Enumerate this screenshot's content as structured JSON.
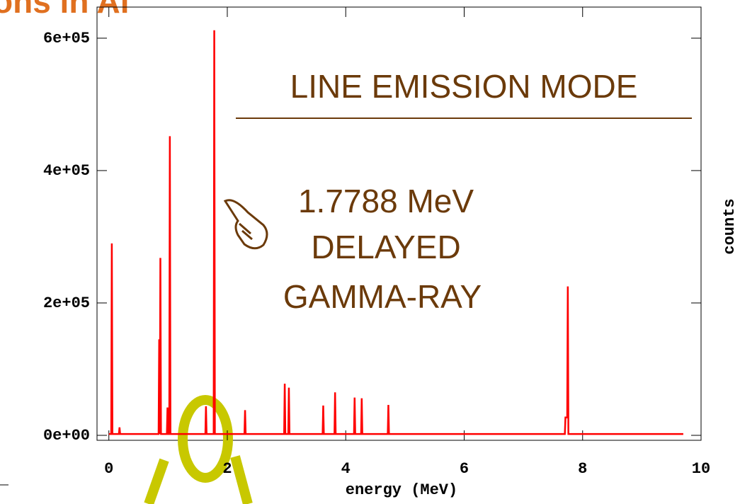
{
  "chart_data": {
    "type": "line",
    "title": "ons in Al",
    "xlabel": "energy (MeV)",
    "ylabel": "counts",
    "annotations": [
      "LINE EMISSION MODE",
      "1.7788 MeV",
      "DELAYED",
      "GAMMA-RAY"
    ],
    "color": "#ff0000",
    "xlim": [
      -0.2,
      10
    ],
    "ylim": [
      -7500,
      647000
    ],
    "xticks": [
      0,
      2,
      4,
      6,
      8,
      10
    ],
    "yticks": [
      {
        "value": 0,
        "label": "0e+00"
      },
      {
        "value": 200000,
        "label": "2e+05"
      },
      {
        "value": 400000,
        "label": "4e+05"
      },
      {
        "value": 600000,
        "label": "6e+05"
      }
    ],
    "x": [
      0,
      0.04,
      0.05,
      0.06,
      0.17,
      0.18,
      0.19,
      0.84,
      0.85,
      0.86,
      0.87,
      0.88,
      0.98,
      0.99,
      1.0,
      1.02,
      1.03,
      1.04,
      1.63,
      1.64,
      1.65,
      1.77,
      1.78,
      1.79,
      2.29,
      2.3,
      2.31,
      2.96,
      2.97,
      2.98,
      3.03,
      3.04,
      3.05,
      3.61,
      3.62,
      3.63,
      3.81,
      3.82,
      3.83,
      4.14,
      4.15,
      4.16,
      4.26,
      4.27,
      4.28,
      4.71,
      4.72,
      4.73,
      7.7,
      7.71,
      7.74,
      7.75,
      7.76,
      9.7
    ],
    "values": [
      2000,
      2000,
      290000,
      2000,
      2000,
      12000,
      2000,
      2000,
      145000,
      2000,
      268000,
      2000,
      2000,
      42000,
      2000,
      2000,
      452000,
      2000,
      2000,
      44000,
      2000,
      2000,
      612000,
      2000,
      2000,
      38000,
      2000,
      2000,
      78000,
      2000,
      2000,
      72000,
      2000,
      2000,
      45000,
      2000,
      2000,
      65000,
      2000,
      2000,
      57000,
      2000,
      2000,
      56000,
      2000,
      2000,
      46000,
      2000,
      2000,
      27000,
      27000,
      225000,
      2000,
      2000
    ]
  }
}
